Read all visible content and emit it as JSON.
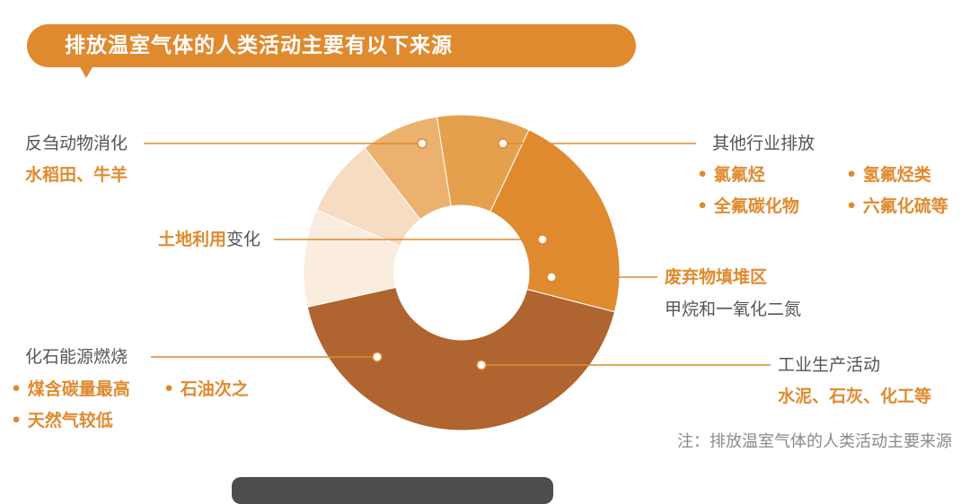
{
  "header": {
    "title": "排放温室气体的人类活动主要有以下来源"
  },
  "chart_data": {
    "type": "pie",
    "variant": "donut",
    "slices": [
      {
        "label": "其他行业排放",
        "value": 8.0,
        "color": "#f6dcc0"
      },
      {
        "label": "土地利用变化",
        "value": 8.0,
        "color": "#ebb26f"
      },
      {
        "label": "废弃物填堆区",
        "value": 9.5,
        "color": "#e5a04e"
      },
      {
        "label": "工业生产活动",
        "value": 22.0,
        "color": "#df8a2e"
      },
      {
        "label": "化石能源燃烧",
        "value": 42.5,
        "color": "#b0642f"
      },
      {
        "label": "反刍动物消化",
        "value": 10.0,
        "color": "#fbece0"
      }
    ]
  },
  "labels": {
    "ruminant": {
      "title": "反刍动物消化",
      "detail": "水稻田、牛羊"
    },
    "land": {
      "highlight": "土地利用",
      "suffix": "变化"
    },
    "fossil": {
      "title": "化石能源燃烧",
      "bullets": [
        "煤含碳量最高",
        "石油次之",
        "天然气较低"
      ]
    },
    "other": {
      "title": "其他行业排放",
      "bullets": [
        "氯氟烃",
        "氢氟烃类",
        "全氟碳化物",
        "六氟化硫等"
      ]
    },
    "waste": {
      "title": "废弃物填堆区",
      "detail": "甲烷和一氧化二氮"
    },
    "industry": {
      "title": "工业生产活动",
      "detail": "水泥、石灰、化工等"
    }
  },
  "note": "注：排放温室气体的人类活动主要来源",
  "colors": {
    "accent": "#e08a2f",
    "leader": "#e08a2f",
    "dot_fill": "#ffffff"
  }
}
